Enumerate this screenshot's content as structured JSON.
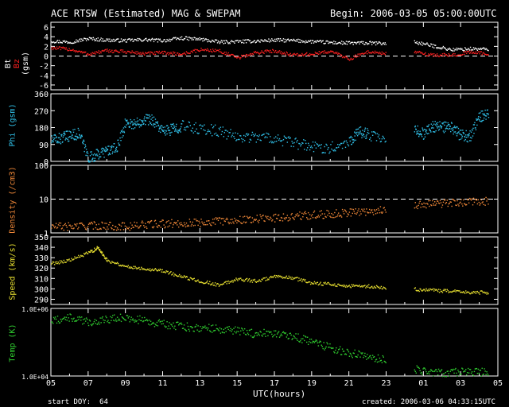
{
  "header": {
    "title": "ACE RTSW (Estimated) MAG & SWEPAM",
    "begin": "Begin: 2006-03-05 05:00:00UTC"
  },
  "footer": {
    "start_doy": "start DOY:  64",
    "created": "created: 2006-03-06 04:33:15UTC",
    "xlabel": "UTC(hours)"
  },
  "colors": {
    "bt": "#ffffff",
    "bz": "#ff2020",
    "phi": "#30c0e8",
    "density": "#f08838",
    "speed": "#e8e030",
    "temp": "#30d030",
    "axes": "#ffffff"
  },
  "x_axis": {
    "range": [
      5,
      29
    ],
    "ticks": [
      "05",
      "07",
      "09",
      "11",
      "13",
      "15",
      "17",
      "19",
      "21",
      "23",
      "01",
      "03",
      "05"
    ]
  },
  "chart_data": [
    {
      "type": "scatter",
      "panel": "mag",
      "ylabel_parts": [
        "Bt",
        "Bz",
        "(gsm)"
      ],
      "ylim": [
        -7,
        7
      ],
      "ticks": [
        "6",
        "4",
        "2",
        "0",
        "-2",
        "-4",
        "-6"
      ],
      "dashed_lines": [
        0
      ],
      "series": [
        {
          "name": "Bt",
          "x": [
            5,
            6,
            7,
            8,
            9,
            10,
            11,
            12,
            13,
            14,
            15,
            16,
            17,
            18,
            19,
            20,
            21,
            22,
            23,
            24.5,
            25.5,
            26.5,
            27.5,
            28.5
          ],
          "y": [
            3.2,
            3.0,
            3.7,
            3.4,
            3.3,
            3.5,
            3.3,
            3.8,
            3.6,
            3.0,
            3.1,
            3.2,
            3.4,
            3.3,
            3.1,
            2.9,
            2.8,
            2.8,
            2.7,
            3.0,
            2.2,
            1.4,
            1.6,
            1.5
          ]
        },
        {
          "name": "Bz",
          "x": [
            5,
            6,
            7,
            8,
            9,
            10,
            11,
            12,
            13,
            14,
            15,
            16,
            17,
            18,
            19,
            20,
            21,
            22,
            23,
            24.5,
            25.5,
            26.5,
            27.5,
            28.5
          ],
          "y": [
            1.8,
            1.5,
            0.5,
            1.2,
            1.0,
            0.6,
            0.8,
            0.5,
            1.4,
            1.2,
            -0.3,
            0.8,
            1.2,
            0.3,
            0.5,
            1.1,
            -0.5,
            1.0,
            0.6,
            0.9,
            0.3,
            0.3,
            0.9,
            0.6
          ]
        }
      ]
    },
    {
      "type": "scatter",
      "panel": "phi",
      "ylabel": "Phi (gsm)",
      "ylim": [
        0,
        360
      ],
      "ticks": [
        "360",
        "270",
        "180",
        "90",
        "0"
      ],
      "series": [
        {
          "name": "Phi",
          "x": [
            5,
            5.5,
            6,
            6.5,
            7,
            7.5,
            8,
            8.5,
            9,
            9.5,
            10,
            10.5,
            11,
            11.5,
            12,
            13,
            14,
            15,
            16,
            17,
            18,
            19,
            20,
            21,
            21.5,
            22,
            23,
            24.5,
            25,
            25.5,
            26,
            26.5,
            27,
            27.5,
            28,
            28.5
          ],
          "y": [
            115,
            125,
            140,
            150,
            20,
            40,
            60,
            70,
            210,
            200,
            230,
            220,
            160,
            175,
            190,
            175,
            165,
            130,
            135,
            125,
            100,
            80,
            75,
            110,
            160,
            150,
            100,
            170,
            150,
            190,
            185,
            180,
            140,
            135,
            240,
            265
          ]
        }
      ]
    },
    {
      "type": "scatter",
      "panel": "density",
      "ylabel": "Density (/cm3)",
      "yscale": "log",
      "ylim": [
        1,
        100
      ],
      "ticks": [
        "100",
        "10",
        "1"
      ],
      "dashed_lines": [
        10
      ],
      "series": [
        {
          "name": "Density",
          "x": [
            5,
            6,
            7,
            8,
            9,
            10,
            11,
            12,
            13,
            14,
            15,
            16,
            17,
            18,
            19,
            20,
            21,
            22,
            23,
            24.5,
            25.5,
            26.5,
            27.5,
            28.5
          ],
          "y": [
            1.6,
            1.6,
            1.7,
            1.7,
            1.6,
            1.8,
            1.9,
            2.0,
            2.1,
            2.3,
            2.5,
            2.7,
            2.9,
            3.2,
            3.5,
            3.8,
            4.2,
            4.5,
            5.0,
            7.0,
            7.5,
            8.0,
            8.5,
            9.0
          ]
        }
      ]
    },
    {
      "type": "scatter",
      "panel": "speed",
      "ylabel": "Speed (km/s)",
      "ylim": [
        285,
        350
      ],
      "ticks": [
        "350",
        "340",
        "330",
        "320",
        "310",
        "300",
        "290"
      ],
      "series": [
        {
          "name": "Speed",
          "x": [
            5,
            6,
            7,
            7.5,
            8,
            9,
            10,
            11,
            12,
            13,
            14,
            15,
            16,
            17,
            18,
            19,
            20,
            21,
            22,
            23,
            24.5,
            25.5,
            26.5,
            27.5,
            28.5
          ],
          "y": [
            325,
            328,
            335,
            340,
            328,
            322,
            320,
            318,
            312,
            308,
            304,
            310,
            308,
            312,
            311,
            306,
            305,
            303,
            303,
            301,
            300,
            299,
            298,
            297,
            297
          ]
        }
      ]
    },
    {
      "type": "scatter",
      "panel": "temp",
      "ylabel": "Temp (K)",
      "yscale": "log",
      "ylim": [
        10000,
        1000000
      ],
      "ticks": [
        "1.0E+06",
        "1.0E+04"
      ],
      "series": [
        {
          "name": "Temp",
          "x": [
            5,
            6,
            7,
            8,
            9,
            10,
            11,
            12,
            13,
            14,
            15,
            16,
            17,
            18,
            19,
            20,
            21,
            22,
            23,
            24.5,
            25.5,
            26.5,
            27.5,
            28.5
          ],
          "y": [
            450000,
            550000,
            400000,
            500000,
            550000,
            450000,
            350000,
            300000,
            280000,
            250000,
            220000,
            180000,
            200000,
            150000,
            110000,
            70000,
            50000,
            40000,
            30000,
            17000,
            13000,
            13000,
            14000,
            13000
          ]
        }
      ]
    }
  ]
}
